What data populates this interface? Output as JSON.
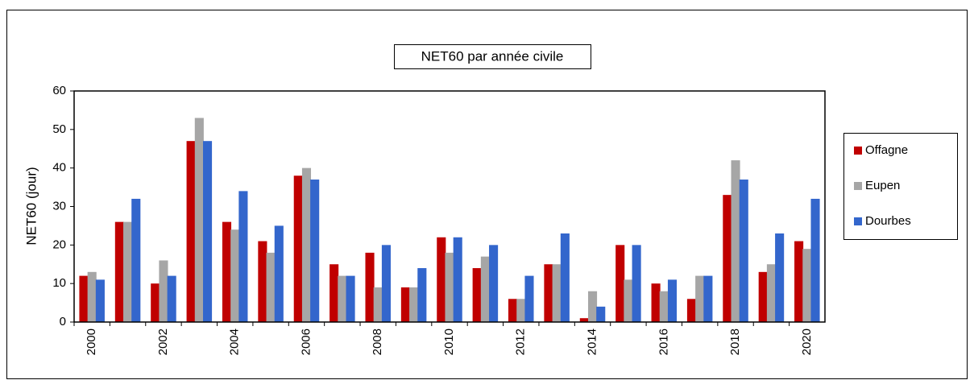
{
  "chart_data": {
    "type": "bar",
    "title": "NET60 par année civile",
    "ylabel": "NET60 (jour)",
    "categories": [
      "2000",
      null,
      "2002",
      null,
      "2004",
      null,
      "2006",
      null,
      "2008",
      null,
      "2010",
      null,
      "2012",
      null,
      "2014",
      null,
      "2016",
      null,
      "2018",
      null,
      "2020"
    ],
    "series": [
      {
        "name": "Offagne",
        "color": "#c00000",
        "values": [
          12,
          26,
          10,
          47,
          26,
          21,
          38,
          15,
          18,
          9,
          22,
          14,
          6,
          15,
          1,
          20,
          10,
          6,
          33,
          13,
          21
        ]
      },
      {
        "name": "Eupen",
        "color": "#a6a6a6",
        "values": [
          13,
          26,
          16,
          53,
          24,
          18,
          40,
          12,
          9,
          9,
          18,
          17,
          6,
          15,
          8,
          11,
          8,
          12,
          42,
          15,
          19
        ]
      },
      {
        "name": "Dourbes",
        "color": "#3366cc",
        "values": [
          11,
          32,
          12,
          47,
          34,
          25,
          37,
          12,
          20,
          14,
          22,
          20,
          12,
          23,
          4,
          20,
          11,
          12,
          37,
          23,
          32
        ]
      }
    ],
    "ylim": [
      0,
      60
    ],
    "yticks": [
      0,
      10,
      20,
      30,
      40,
      50,
      60
    ],
    "grid": false,
    "legend": "right"
  }
}
